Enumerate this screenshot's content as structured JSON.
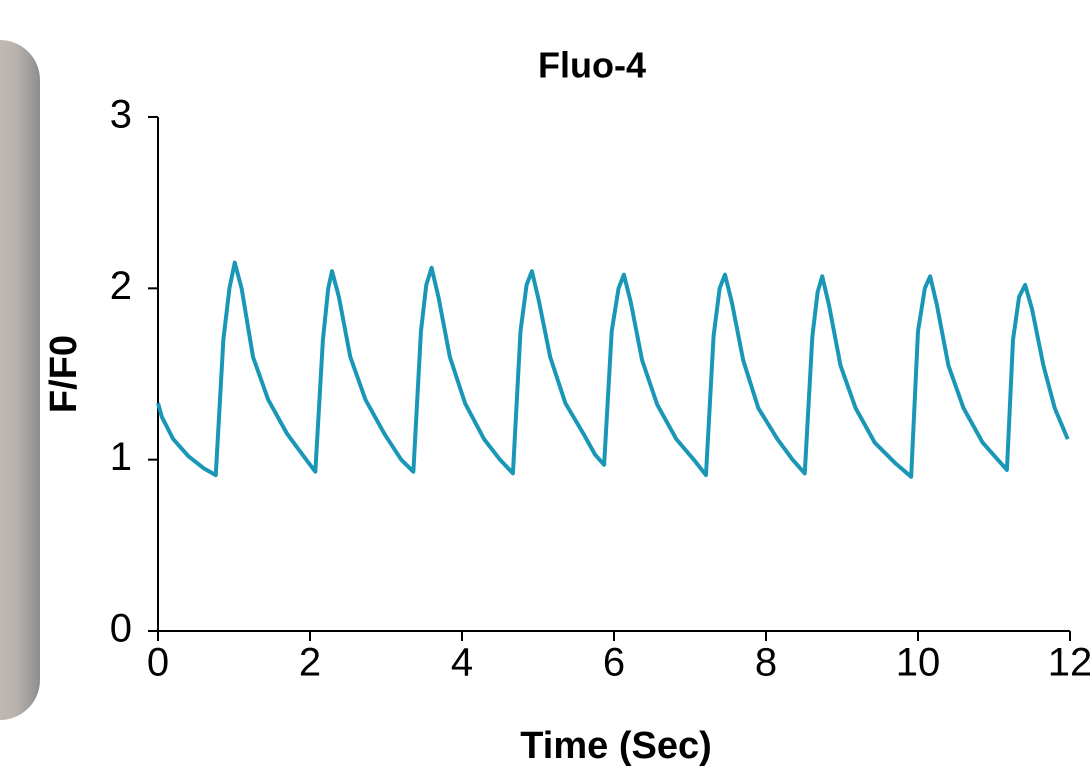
{
  "chart_data": {
    "type": "line",
    "title": "Fluo-4",
    "x_label": "Time (Sec)",
    "y_label": "F/F0",
    "xlim": [
      0,
      12
    ],
    "xticks": [
      0,
      2,
      4,
      6,
      8,
      10,
      12
    ],
    "ylim": [
      0,
      3
    ],
    "yticks": [
      0,
      1,
      2,
      3
    ],
    "grid": false,
    "x": [
      0,
      0.05,
      0.2,
      0.4,
      0.6,
      0.76,
      0.86,
      0.94,
      1.01,
      1.1,
      1.25,
      1.45,
      1.7,
      1.95,
      2.07,
      2.17,
      2.24,
      2.29,
      2.38,
      2.53,
      2.73,
      2.98,
      3.2,
      3.36,
      3.46,
      3.53,
      3.6,
      3.69,
      3.84,
      4.04,
      4.29,
      4.5,
      4.67,
      4.77,
      4.85,
      4.92,
      5.01,
      5.16,
      5.36,
      5.6,
      5.75,
      5.87,
      5.97,
      6.06,
      6.13,
      6.22,
      6.37,
      6.57,
      6.82,
      7.05,
      7.21,
      7.31,
      7.39,
      7.46,
      7.55,
      7.7,
      7.9,
      8.15,
      8.35,
      8.51,
      8.61,
      8.68,
      8.74,
      8.83,
      8.98,
      9.18,
      9.43,
      9.7,
      9.91,
      10.0,
      10.09,
      10.16,
      10.25,
      10.4,
      10.6,
      10.85,
      11.05,
      11.17,
      11.25,
      11.33,
      11.41,
      11.5,
      11.65,
      11.8,
      11.97
    ],
    "series": [
      {
        "name": "Fluo-4",
        "color": "#1a97b6",
        "values": [
          1.33,
          1.25,
          1.12,
          1.02,
          0.95,
          0.91,
          1.7,
          2.0,
          2.15,
          2.0,
          1.6,
          1.35,
          1.15,
          1.0,
          0.93,
          1.7,
          2.0,
          2.1,
          1.95,
          1.6,
          1.35,
          1.15,
          1.0,
          0.93,
          1.75,
          2.02,
          2.12,
          1.95,
          1.6,
          1.33,
          1.12,
          1.0,
          0.92,
          1.75,
          2.02,
          2.1,
          1.93,
          1.6,
          1.33,
          1.15,
          1.03,
          0.97,
          1.75,
          2.0,
          2.08,
          1.92,
          1.58,
          1.32,
          1.12,
          1.0,
          0.91,
          1.72,
          2.0,
          2.08,
          1.92,
          1.58,
          1.3,
          1.12,
          1.0,
          0.92,
          1.72,
          1.98,
          2.07,
          1.9,
          1.55,
          1.3,
          1.1,
          0.98,
          0.9,
          1.75,
          2.0,
          2.07,
          1.9,
          1.55,
          1.3,
          1.1,
          1.0,
          0.94,
          1.7,
          1.95,
          2.02,
          1.88,
          1.55,
          1.3,
          1.12
        ]
      }
    ]
  }
}
